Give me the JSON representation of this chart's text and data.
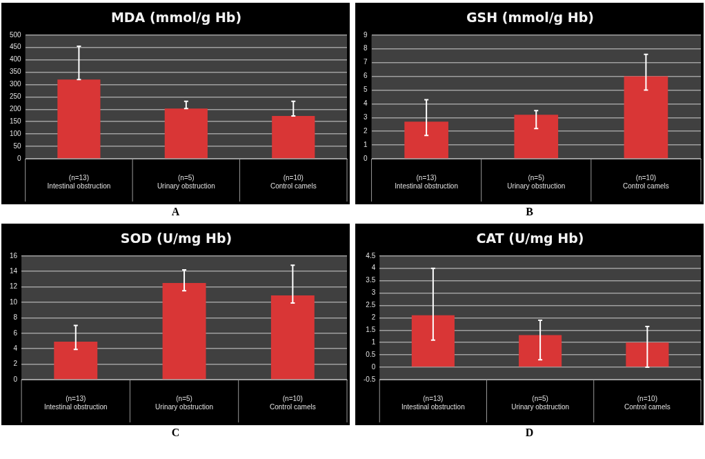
{
  "chart_data": [
    {
      "type": "bar",
      "title": "MDA (mmol/g Hb)",
      "categories": [
        "(n=13)\nIntestinal obstruction",
        "(n=5)\nUrinary obstruction",
        "(n=10)\nControl camels"
      ],
      "values": [
        320,
        203,
        173
      ],
      "color": "#d93636",
      "errors": [
        [
          320,
          455
        ],
        [
          203,
          232
        ],
        [
          173,
          232
        ]
      ],
      "ylim": [
        0,
        500
      ],
      "yticks": [
        0,
        50,
        100,
        150,
        200,
        250,
        300,
        350,
        400,
        450,
        500
      ],
      "grid": "y",
      "annotations": [
        "A"
      ]
    },
    {
      "type": "bar",
      "title": "GSH (mmol/g Hb)",
      "categories": [
        "(n=13)\nIntestinal obstruction",
        "(n=5)\nUrinary obstruction",
        "(n=10)\nControl camels"
      ],
      "values": [
        2.7,
        3.2,
        6.0
      ],
      "color": "#d93636",
      "errors": [
        [
          1.7,
          4.3
        ],
        [
          2.2,
          3.5
        ],
        [
          5.0,
          7.6
        ]
      ],
      "ylim": [
        0,
        9
      ],
      "yticks": [
        0,
        1,
        2,
        3,
        4,
        5,
        6,
        7,
        8,
        9
      ],
      "grid": "y",
      "annotations": [
        "B"
      ]
    },
    {
      "type": "bar",
      "title": "SOD (U/mg Hb)",
      "categories": [
        "(n=13)\nIntestinal obstruction",
        "(n=5)\nUrinary obstruction",
        "(n=10)\nControl camels"
      ],
      "values": [
        4.9,
        12.5,
        10.9
      ],
      "color": "#d93636",
      "errors": [
        [
          3.9,
          7.0
        ],
        [
          11.5,
          14.2
        ],
        [
          9.9,
          14.8
        ]
      ],
      "ylim": [
        0,
        16
      ],
      "yticks": [
        0,
        2,
        4,
        6,
        8,
        10,
        12,
        14,
        16
      ],
      "grid": "y",
      "annotations": [
        "C"
      ]
    },
    {
      "type": "bar",
      "title": "CAT (U/mg Hb)",
      "categories": [
        "(n=13)\nIntestinal obstruction",
        "(n=5)\nUrinary obstruction",
        "(n=10)\nControl camels"
      ],
      "values": [
        2.1,
        1.3,
        1.0
      ],
      "color": "#d93636",
      "errors": [
        [
          1.1,
          4.0
        ],
        [
          0.3,
          1.9
        ],
        [
          0.0,
          1.65
        ]
      ],
      "ylim": [
        -0.5,
        4.5
      ],
      "yticks": [
        -0.5,
        0,
        0.5,
        1,
        1.5,
        2,
        2.5,
        3,
        3.5,
        4,
        4.5
      ],
      "grid": "y",
      "annotations": [
        "D"
      ]
    }
  ]
}
